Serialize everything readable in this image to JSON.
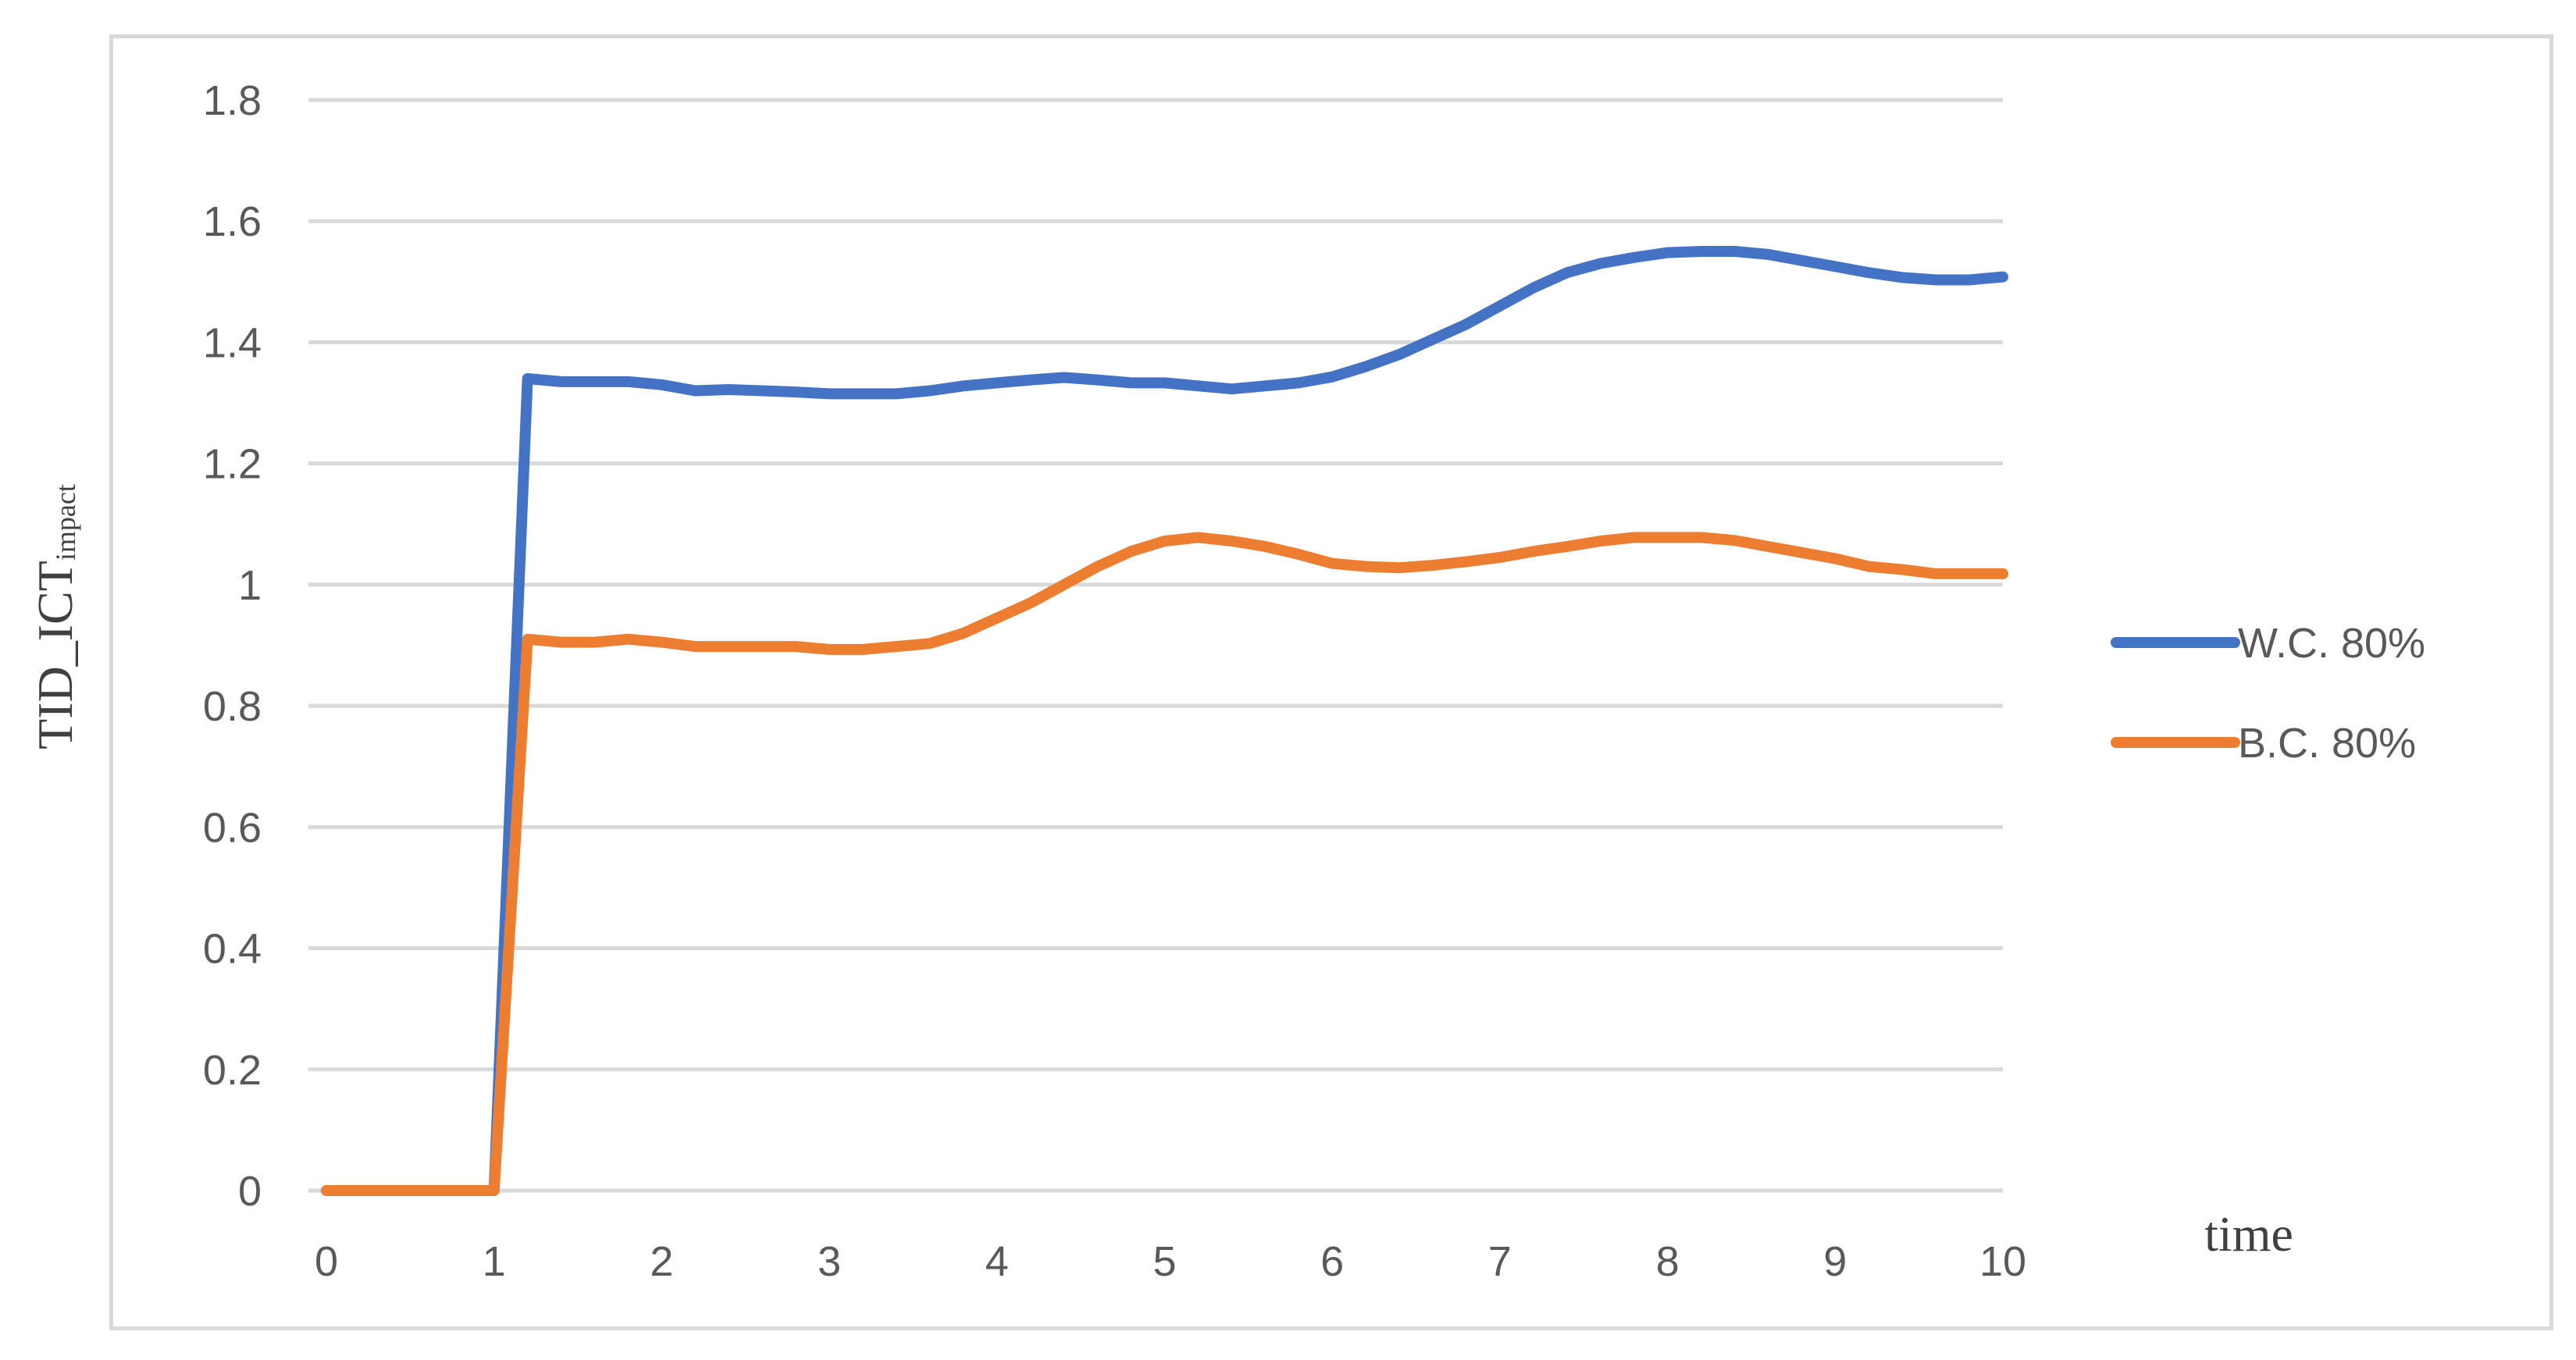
{
  "chart_data": {
    "type": "line",
    "title": "",
    "xlabel": "time",
    "ylabel": "TID_ICT",
    "ylabel_subscript": "impact",
    "xlim": [
      0,
      10
    ],
    "ylim": [
      0,
      1.8
    ],
    "xticks": [
      "0",
      "1",
      "2",
      "3",
      "4",
      "5",
      "6",
      "7",
      "8",
      "9",
      "10"
    ],
    "yticks": [
      "0",
      "0.2",
      "0.4",
      "0.6",
      "0.8",
      "1",
      "1.2",
      "1.4",
      "1.6",
      "1.8"
    ],
    "grid": true,
    "legend_position": "right",
    "series": [
      {
        "name": "W.C. 80%",
        "color": "#4472C4",
        "x": [
          0,
          1,
          1.2,
          1.4,
          1.6,
          1.8,
          2.0,
          2.2,
          2.4,
          2.6,
          2.8,
          3.0,
          3.2,
          3.4,
          3.6,
          3.8,
          4.0,
          4.2,
          4.4,
          4.6,
          4.8,
          5.0,
          5.2,
          5.4,
          5.6,
          5.8,
          6.0,
          6.2,
          6.4,
          6.6,
          6.8,
          7.0,
          7.2,
          7.4,
          7.6,
          7.8,
          8.0,
          8.2,
          8.4,
          8.6,
          8.8,
          9.0,
          9.2,
          9.4,
          9.6,
          9.8,
          10.0
        ],
        "y": [
          0,
          0,
          1.34,
          1.335,
          1.335,
          1.335,
          1.33,
          1.32,
          1.322,
          1.32,
          1.318,
          1.315,
          1.315,
          1.315,
          1.32,
          1.328,
          1.333,
          1.338,
          1.342,
          1.338,
          1.333,
          1.333,
          1.328,
          1.323,
          1.328,
          1.333,
          1.343,
          1.36,
          1.38,
          1.405,
          1.43,
          1.46,
          1.49,
          1.515,
          1.53,
          1.54,
          1.548,
          1.55,
          1.55,
          1.545,
          1.535,
          1.525,
          1.515,
          1.507,
          1.503,
          1.503,
          1.508
        ]
      },
      {
        "name": "B.C. 80%",
        "color": "#ED7D31",
        "x": [
          0,
          1,
          1.2,
          1.4,
          1.6,
          1.8,
          2.0,
          2.2,
          2.4,
          2.6,
          2.8,
          3.0,
          3.2,
          3.4,
          3.6,
          3.8,
          4.0,
          4.2,
          4.4,
          4.6,
          4.8,
          5.0,
          5.2,
          5.4,
          5.6,
          5.8,
          6.0,
          6.2,
          6.4,
          6.6,
          6.8,
          7.0,
          7.2,
          7.4,
          7.6,
          7.8,
          8.0,
          8.2,
          8.4,
          8.6,
          8.8,
          9.0,
          9.2,
          9.4,
          9.6,
          9.8,
          10.0
        ],
        "y": [
          0,
          0,
          0.91,
          0.905,
          0.905,
          0.91,
          0.905,
          0.898,
          0.898,
          0.898,
          0.898,
          0.893,
          0.893,
          0.898,
          0.903,
          0.92,
          0.945,
          0.97,
          1.0,
          1.03,
          1.055,
          1.072,
          1.078,
          1.072,
          1.063,
          1.05,
          1.035,
          1.03,
          1.028,
          1.032,
          1.038,
          1.045,
          1.055,
          1.063,
          1.072,
          1.078,
          1.078,
          1.078,
          1.073,
          1.063,
          1.053,
          1.043,
          1.03,
          1.025,
          1.018,
          1.018,
          1.018
        ]
      }
    ]
  }
}
